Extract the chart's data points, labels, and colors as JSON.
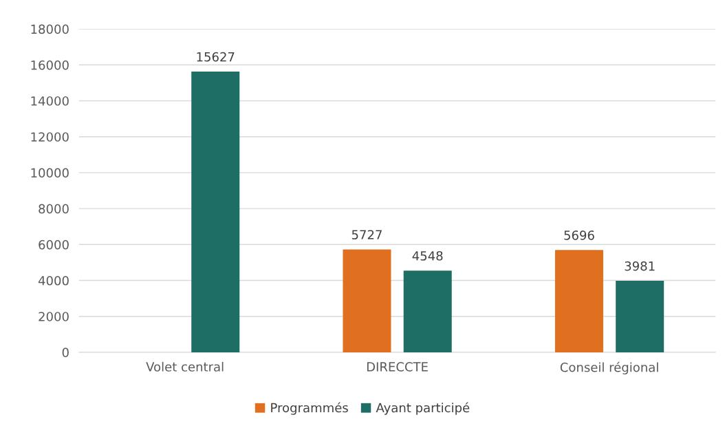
{
  "chart_data": {
    "type": "bar",
    "categories": [
      "Volet central",
      "DIRECCTE",
      "Conseil régional"
    ],
    "series": [
      {
        "name": "Programmés",
        "color": "#e07020",
        "values": [
          null,
          5727,
          5696
        ]
      },
      {
        "name": "Ayant participé",
        "color": "#1e6e66",
        "values": [
          15627,
          4548,
          3981
        ]
      }
    ],
    "ylim": [
      0,
      18000
    ],
    "yticks": [
      0,
      2000,
      4000,
      6000,
      8000,
      10000,
      12000,
      14000,
      16000,
      18000
    ],
    "grid": "y",
    "legend": "bottom",
    "data_labels": true
  }
}
